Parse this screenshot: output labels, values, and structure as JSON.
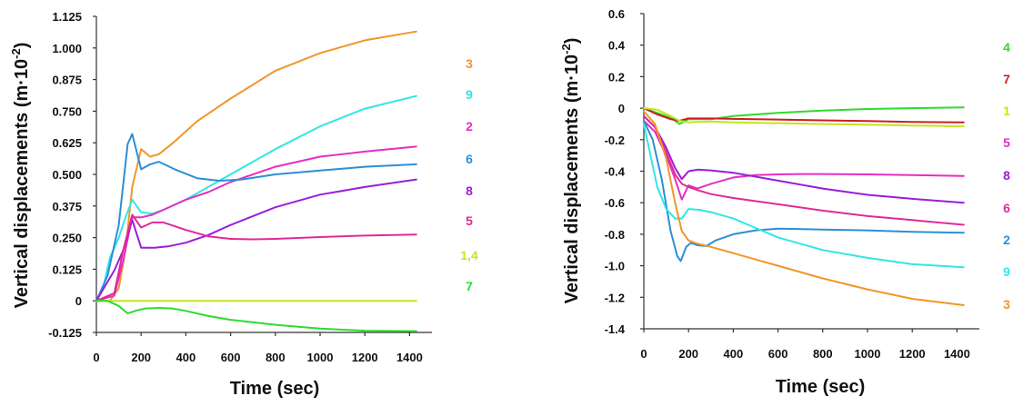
{
  "chart_data": [
    {
      "type": "line",
      "xlabel": "Time (sec)",
      "ylabel": "Vertical  displacements (m·10",
      "ylabel_exp": "-2",
      "ylabel_close": ")",
      "xlim": [
        0,
        1500
      ],
      "ylim": [
        -0.125,
        1.125
      ],
      "xticks": [
        "0",
        "200",
        "400",
        "600",
        "800",
        "1000",
        "1200",
        "1400"
      ],
      "yticks": [
        "-0.125",
        "0",
        "0.125",
        "0.250",
        "0.375",
        "0.500",
        "0.625",
        "0.750",
        "0.875",
        "1.000",
        "1.125"
      ],
      "x_tick_values": [
        0,
        200,
        400,
        600,
        800,
        1000,
        1200,
        1400
      ],
      "y_tick_values": [
        -0.125,
        0,
        0.125,
        0.25,
        0.375,
        0.5,
        0.625,
        0.75,
        0.875,
        1.0,
        1.125
      ],
      "grid": false,
      "legend_placement": "right",
      "legend_order": [
        "3",
        "9",
        "2",
        "6",
        "8",
        "5",
        "1,4",
        "7"
      ],
      "series": [
        {
          "name": "3",
          "color": "#f0962a",
          "x": [
            0,
            60,
            100,
            130,
            160,
            200,
            240,
            280,
            350,
            450,
            600,
            800,
            1000,
            1200,
            1430
          ],
          "y": [
            0,
            0,
            0.05,
            0.2,
            0.45,
            0.6,
            0.57,
            0.58,
            0.63,
            0.71,
            0.8,
            0.91,
            0.98,
            1.03,
            1.065
          ]
        },
        {
          "name": "9",
          "color": "#33e5e5",
          "x": [
            0,
            30,
            60,
            100,
            130,
            160,
            200,
            250,
            300,
            400,
            500,
            600,
            800,
            1000,
            1200,
            1430
          ],
          "y": [
            0,
            0.05,
            0.17,
            0.25,
            0.33,
            0.4,
            0.35,
            0.345,
            0.36,
            0.4,
            0.45,
            0.5,
            0.6,
            0.69,
            0.76,
            0.81
          ]
        },
        {
          "name": "2",
          "color": "#e62ec1",
          "x": [
            0,
            80,
            120,
            160,
            200,
            250,
            300,
            400,
            500,
            600,
            800,
            1000,
            1200,
            1430
          ],
          "y": [
            0,
            0.02,
            0.16,
            0.33,
            0.33,
            0.34,
            0.36,
            0.4,
            0.43,
            0.47,
            0.53,
            0.57,
            0.59,
            0.61
          ]
        },
        {
          "name": "6",
          "color": "#2a8fd6",
          "x": [
            0,
            50,
            100,
            140,
            160,
            200,
            240,
            280,
            350,
            450,
            550,
            650,
            800,
            1000,
            1200,
            1430
          ],
          "y": [
            0,
            0.1,
            0.3,
            0.62,
            0.66,
            0.52,
            0.54,
            0.55,
            0.52,
            0.485,
            0.475,
            0.48,
            0.5,
            0.515,
            0.53,
            0.54
          ]
        },
        {
          "name": "8",
          "color": "#9a1ed6",
          "x": [
            0,
            40,
            80,
            120,
            160,
            200,
            260,
            320,
            400,
            500,
            600,
            800,
            1000,
            1200,
            1430
          ],
          "y": [
            0,
            0.06,
            0.12,
            0.2,
            0.32,
            0.21,
            0.21,
            0.215,
            0.23,
            0.26,
            0.3,
            0.37,
            0.42,
            0.45,
            0.48
          ]
        },
        {
          "name": "5",
          "color": "#e02a98",
          "x": [
            0,
            80,
            120,
            160,
            200,
            250,
            300,
            400,
            500,
            600,
            700,
            800,
            1000,
            1200,
            1430
          ],
          "y": [
            0,
            0.03,
            0.2,
            0.34,
            0.29,
            0.31,
            0.31,
            0.28,
            0.255,
            0.245,
            0.243,
            0.245,
            0.252,
            0.258,
            0.262
          ]
        },
        {
          "name": "1,4",
          "color": "#c3e51e",
          "x": [
            0,
            300,
            600,
            900,
            1200,
            1430
          ],
          "y": [
            0,
            0,
            0,
            0,
            0,
            0
          ]
        },
        {
          "name": "7",
          "color": "#2edb2e",
          "x": [
            0,
            50,
            100,
            140,
            180,
            220,
            280,
            340,
            400,
            500,
            600,
            800,
            1000,
            1200,
            1430
          ],
          "y": [
            0,
            0,
            -0.02,
            -0.05,
            -0.038,
            -0.03,
            -0.028,
            -0.03,
            -0.04,
            -0.06,
            -0.075,
            -0.095,
            -0.11,
            -0.118,
            -0.12
          ]
        }
      ]
    },
    {
      "type": "line",
      "xlabel": "Time (sec)",
      "ylabel": "Vertical  displacements (m·10",
      "ylabel_exp": "-2",
      "ylabel_close": ")",
      "xlim": [
        0,
        1500
      ],
      "ylim": [
        -1.4,
        0.6
      ],
      "xticks": [
        "0",
        "200",
        "400",
        "600",
        "800",
        "1000",
        "1200",
        "1400"
      ],
      "yticks": [
        "-1.4",
        "-1.2",
        "-1.0",
        "-0.8",
        "-0.6",
        "-0.4",
        "-0.2",
        "0",
        "0.2",
        "0.4",
        "0.6"
      ],
      "x_tick_values": [
        0,
        200,
        400,
        600,
        800,
        1000,
        1200,
        1400
      ],
      "y_tick_values": [
        -1.4,
        -1.2,
        -1.0,
        -0.8,
        -0.6,
        -0.4,
        -0.2,
        0,
        0.2,
        0.4,
        0.6
      ],
      "grid": false,
      "legend_placement": "right",
      "legend_order": [
        "4",
        "7",
        "1",
        "5",
        "8",
        "6",
        "2",
        "9",
        "3"
      ],
      "series": [
        {
          "name": "4",
          "color": "#2edb2e",
          "x": [
            0,
            60,
            120,
            160,
            200,
            300,
            400,
            600,
            800,
            1000,
            1200,
            1430
          ],
          "y": [
            0,
            -0.03,
            -0.06,
            -0.1,
            -0.07,
            -0.07,
            -0.05,
            -0.03,
            -0.015,
            -0.005,
            0,
            0.005
          ]
        },
        {
          "name": "7",
          "color": "#cc1e1e",
          "x": [
            0,
            60,
            120,
            160,
            200,
            300,
            400,
            600,
            800,
            1000,
            1200,
            1430
          ],
          "y": [
            0,
            -0.04,
            -0.07,
            -0.08,
            -0.065,
            -0.065,
            -0.068,
            -0.072,
            -0.077,
            -0.082,
            -0.087,
            -0.09
          ]
        },
        {
          "name": "1",
          "color": "#c3e51e",
          "x": [
            0,
            60,
            120,
            160,
            200,
            300,
            400,
            600,
            800,
            1000,
            1200,
            1430
          ],
          "y": [
            0,
            -0.01,
            -0.05,
            -0.08,
            -0.09,
            -0.085,
            -0.09,
            -0.095,
            -0.1,
            -0.105,
            -0.11,
            -0.115
          ]
        },
        {
          "name": "5",
          "color": "#e62ec1",
          "x": [
            0,
            50,
            100,
            140,
            170,
            200,
            240,
            300,
            400,
            500,
            600,
            700,
            800,
            1000,
            1200,
            1430
          ],
          "y": [
            -0.08,
            -0.15,
            -0.3,
            -0.45,
            -0.58,
            -0.49,
            -0.51,
            -0.48,
            -0.44,
            -0.425,
            -0.42,
            -0.418,
            -0.418,
            -0.42,
            -0.425,
            -0.43
          ]
        },
        {
          "name": "8",
          "color": "#9a1ed6",
          "x": [
            0,
            50,
            100,
            140,
            170,
            200,
            240,
            300,
            400,
            600,
            800,
            1000,
            1200,
            1430
          ],
          "y": [
            -0.05,
            -0.12,
            -0.25,
            -0.38,
            -0.45,
            -0.4,
            -0.39,
            -0.395,
            -0.41,
            -0.46,
            -0.51,
            -0.55,
            -0.575,
            -0.6
          ]
        },
        {
          "name": "6",
          "color": "#e02a98",
          "x": [
            0,
            50,
            100,
            140,
            170,
            200,
            240,
            300,
            400,
            600,
            800,
            1000,
            1200,
            1430
          ],
          "y": [
            -0.05,
            -0.12,
            -0.28,
            -0.42,
            -0.48,
            -0.5,
            -0.52,
            -0.545,
            -0.57,
            -0.61,
            -0.65,
            -0.685,
            -0.71,
            -0.74
          ]
        },
        {
          "name": "2",
          "color": "#2a8fd6",
          "x": [
            0,
            40,
            80,
            120,
            150,
            165,
            190,
            210,
            240,
            280,
            320,
            400,
            500,
            600,
            800,
            1000,
            1200,
            1430
          ],
          "y": [
            -0.08,
            -0.2,
            -0.45,
            -0.78,
            -0.94,
            -0.97,
            -0.88,
            -0.855,
            -0.87,
            -0.875,
            -0.84,
            -0.8,
            -0.775,
            -0.765,
            -0.77,
            -0.775,
            -0.785,
            -0.79
          ]
        },
        {
          "name": "9",
          "color": "#33e5e5",
          "x": [
            0,
            30,
            60,
            100,
            140,
            170,
            200,
            250,
            300,
            400,
            500,
            600,
            800,
            1000,
            1200,
            1430
          ],
          "y": [
            -0.1,
            -0.3,
            -0.5,
            -0.64,
            -0.7,
            -0.7,
            -0.64,
            -0.645,
            -0.66,
            -0.7,
            -0.76,
            -0.82,
            -0.9,
            -0.95,
            -0.99,
            -1.01
          ]
        },
        {
          "name": "3",
          "color": "#f0962a",
          "x": [
            0,
            50,
            100,
            140,
            170,
            200,
            240,
            300,
            400,
            500,
            600,
            800,
            1000,
            1200,
            1430
          ],
          "y": [
            -0.02,
            -0.1,
            -0.32,
            -0.6,
            -0.78,
            -0.84,
            -0.86,
            -0.88,
            -0.92,
            -0.96,
            -1.0,
            -1.08,
            -1.15,
            -1.21,
            -1.25
          ]
        }
      ]
    }
  ]
}
